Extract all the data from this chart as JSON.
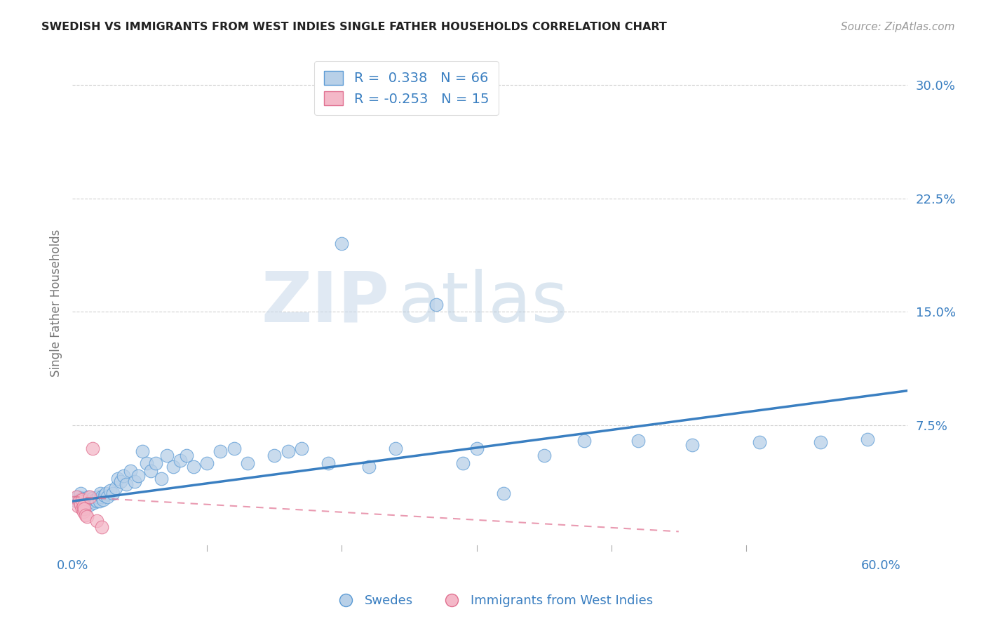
{
  "title": "SWEDISH VS IMMIGRANTS FROM WEST INDIES SINGLE FATHER HOUSEHOLDS CORRELATION CHART",
  "source": "Source: ZipAtlas.com",
  "ylabel": "Single Father Households",
  "xlim": [
    0.0,
    0.62
  ],
  "ylim": [
    -0.008,
    0.32
  ],
  "xticks": [
    0.0,
    0.1,
    0.2,
    0.3,
    0.4,
    0.5,
    0.6
  ],
  "xticklabels": [
    "0.0%",
    "",
    "",
    "",
    "",
    "",
    "60.0%"
  ],
  "yticks": [
    0.075,
    0.15,
    0.225,
    0.3
  ],
  "yticklabels": [
    "7.5%",
    "15.0%",
    "22.5%",
    "30.0%"
  ],
  "grid_color": "#cccccc",
  "background_color": "#ffffff",
  "blue_color": "#b8d0e8",
  "blue_edge_color": "#5b9bd5",
  "blue_line_color": "#3a7fc1",
  "pink_color": "#f4b8c8",
  "pink_edge_color": "#e07090",
  "pink_line_color": "#d4708a",
  "R_blue": 0.338,
  "N_blue": 66,
  "R_pink": -0.253,
  "N_pink": 15,
  "legend_label_blue": "Swedes",
  "legend_label_pink": "Immigrants from West Indies",
  "watermark_zip": "ZIP",
  "watermark_atlas": "atlas",
  "blue_scatter_x": [
    0.003,
    0.004,
    0.005,
    0.006,
    0.007,
    0.008,
    0.009,
    0.01,
    0.011,
    0.012,
    0.013,
    0.014,
    0.015,
    0.016,
    0.017,
    0.018,
    0.019,
    0.02,
    0.021,
    0.022,
    0.023,
    0.024,
    0.025,
    0.026,
    0.028,
    0.03,
    0.032,
    0.034,
    0.036,
    0.038,
    0.04,
    0.043,
    0.046,
    0.049,
    0.052,
    0.055,
    0.058,
    0.062,
    0.066,
    0.07,
    0.075,
    0.08,
    0.085,
    0.09,
    0.1,
    0.11,
    0.12,
    0.13,
    0.15,
    0.16,
    0.17,
    0.19,
    0.2,
    0.22,
    0.24,
    0.27,
    0.29,
    0.3,
    0.32,
    0.35,
    0.38,
    0.42,
    0.46,
    0.51,
    0.555,
    0.59
  ],
  "blue_scatter_y": [
    0.025,
    0.028,
    0.026,
    0.03,
    0.027,
    0.025,
    0.022,
    0.025,
    0.026,
    0.028,
    0.023,
    0.025,
    0.027,
    0.024,
    0.026,
    0.025,
    0.028,
    0.025,
    0.03,
    0.028,
    0.026,
    0.029,
    0.03,
    0.028,
    0.032,
    0.03,
    0.034,
    0.04,
    0.038,
    0.042,
    0.036,
    0.045,
    0.038,
    0.042,
    0.058,
    0.05,
    0.045,
    0.05,
    0.04,
    0.055,
    0.048,
    0.052,
    0.055,
    0.048,
    0.05,
    0.058,
    0.06,
    0.05,
    0.055,
    0.058,
    0.06,
    0.05,
    0.195,
    0.048,
    0.06,
    0.155,
    0.05,
    0.06,
    0.03,
    0.055,
    0.065,
    0.065,
    0.062,
    0.064,
    0.064,
    0.066
  ],
  "pink_scatter_x": [
    0.003,
    0.004,
    0.005,
    0.006,
    0.007,
    0.007,
    0.008,
    0.008,
    0.009,
    0.01,
    0.011,
    0.013,
    0.015,
    0.018,
    0.022
  ],
  "pink_scatter_y": [
    0.028,
    0.022,
    0.025,
    0.023,
    0.026,
    0.02,
    0.018,
    0.022,
    0.02,
    0.016,
    0.015,
    0.028,
    0.06,
    0.012,
    0.008
  ],
  "blue_line_x0": 0.0,
  "blue_line_x1": 0.62,
  "blue_line_y0": 0.025,
  "blue_line_y1": 0.098,
  "pink_line_x0": 0.0,
  "pink_line_x1": 0.45,
  "pink_line_y0": 0.028,
  "pink_line_y1": 0.005
}
